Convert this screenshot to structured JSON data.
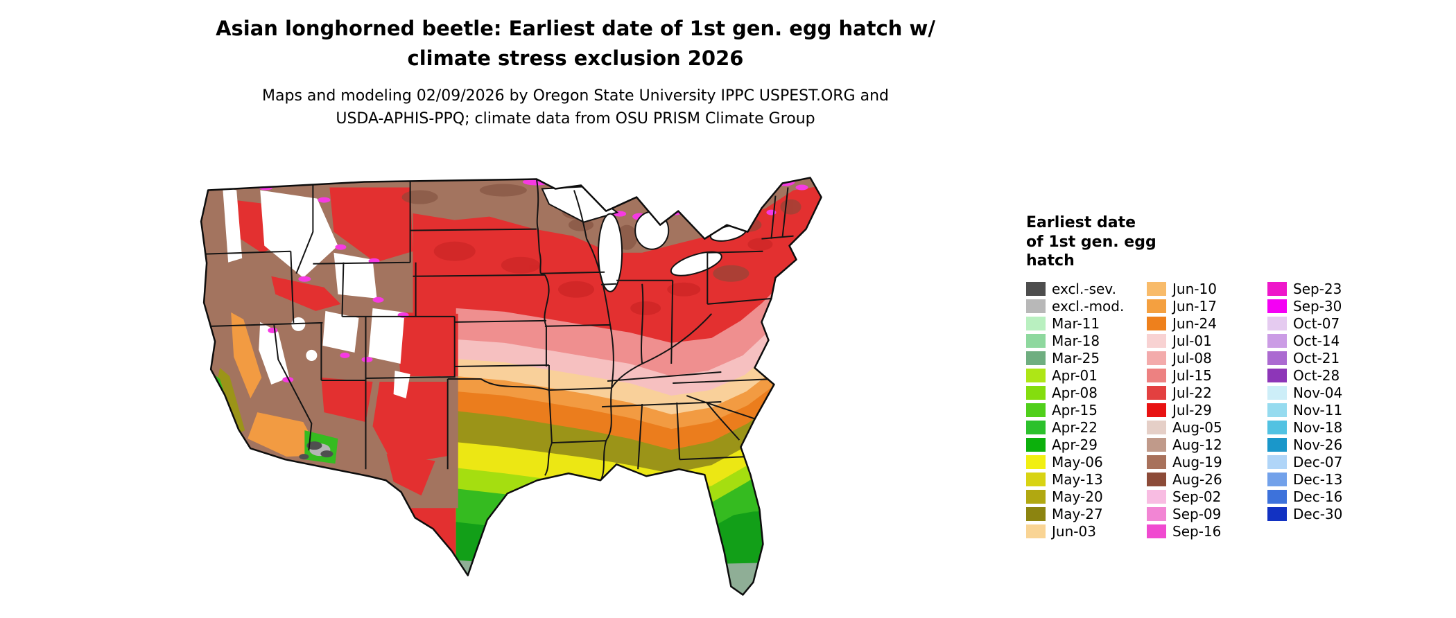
{
  "header": {
    "title_lines": [
      "Asian longhorned beetle: Earliest date of 1st gen. egg hatch w/",
      "climate stress exclusion 2026"
    ],
    "subtitle_lines": [
      "Maps and modeling 02/09/2026 by Oregon State University IPPC USPEST.ORG and",
      "USDA-APHIS-PPQ; climate data from OSU PRISM Climate Group"
    ]
  },
  "legend": {
    "title_lines": [
      "Earliest date",
      "of 1st gen. egg",
      "hatch"
    ],
    "columns": [
      {
        "items": [
          {
            "label": "excl.-sev.",
            "color": "#4d4d4d"
          },
          {
            "label": "excl.-mod.",
            "color": "#b8b8b8"
          },
          {
            "label": "Mar-11",
            "color": "#b9f0c0"
          },
          {
            "label": "Mar-18",
            "color": "#8ed89e"
          },
          {
            "label": "Mar-25",
            "color": "#6fae80"
          },
          {
            "label": "Apr-01",
            "color": "#aee616"
          },
          {
            "label": "Apr-08",
            "color": "#84dd0e"
          },
          {
            "label": "Apr-15",
            "color": "#50cf1b"
          },
          {
            "label": "Apr-22",
            "color": "#2cc12c"
          },
          {
            "label": "Apr-29",
            "color": "#0cb00c"
          },
          {
            "label": "May-06",
            "color": "#f1ef12"
          },
          {
            "label": "May-13",
            "color": "#d8d313"
          },
          {
            "label": "May-20",
            "color": "#b1a811"
          },
          {
            "label": "May-27",
            "color": "#8c8410"
          },
          {
            "label": "Jun-03",
            "color": "#f9d494"
          }
        ]
      },
      {
        "items": [
          {
            "label": "Jun-10",
            "color": "#f8bb6a"
          },
          {
            "label": "Jun-17",
            "color": "#f4a040"
          },
          {
            "label": "Jun-24",
            "color": "#ee801c"
          },
          {
            "label": "Jul-01",
            "color": "#f8d2d2"
          },
          {
            "label": "Jul-08",
            "color": "#f3abab"
          },
          {
            "label": "Jul-15",
            "color": "#ed8181"
          },
          {
            "label": "Jul-22",
            "color": "#e34040"
          },
          {
            "label": "Jul-29",
            "color": "#e81212"
          },
          {
            "label": "Aug-05",
            "color": "#e5cfc7"
          },
          {
            "label": "Aug-12",
            "color": "#c09a8a"
          },
          {
            "label": "Aug-19",
            "color": "#a8715b"
          },
          {
            "label": "Aug-26",
            "color": "#8c4b38"
          },
          {
            "label": "Sep-02",
            "color": "#f8bce2"
          },
          {
            "label": "Sep-09",
            "color": "#f285d4"
          },
          {
            "label": "Sep-16",
            "color": "#f04ad0"
          }
        ]
      },
      {
        "items": [
          {
            "label": "Sep-23",
            "color": "#ee17ca"
          },
          {
            "label": "Sep-30",
            "color": "#f400f4"
          },
          {
            "label": "Oct-07",
            "color": "#e5cbf0"
          },
          {
            "label": "Oct-14",
            "color": "#cb9ce5"
          },
          {
            "label": "Oct-21",
            "color": "#ab6ad1"
          },
          {
            "label": "Oct-28",
            "color": "#8d36b8"
          },
          {
            "label": "Nov-04",
            "color": "#cdeef8"
          },
          {
            "label": "Nov-11",
            "color": "#96dbef"
          },
          {
            "label": "Nov-18",
            "color": "#52c2e2"
          },
          {
            "label": "Nov-26",
            "color": "#1a97ca"
          },
          {
            "label": "Dec-07",
            "color": "#b0d5f8"
          },
          {
            "label": "Dec-13",
            "color": "#72a1ea"
          },
          {
            "label": "Dec-16",
            "color": "#3d72db"
          },
          {
            "label": "Dec-30",
            "color": "#1232c2"
          }
        ]
      }
    ]
  }
}
